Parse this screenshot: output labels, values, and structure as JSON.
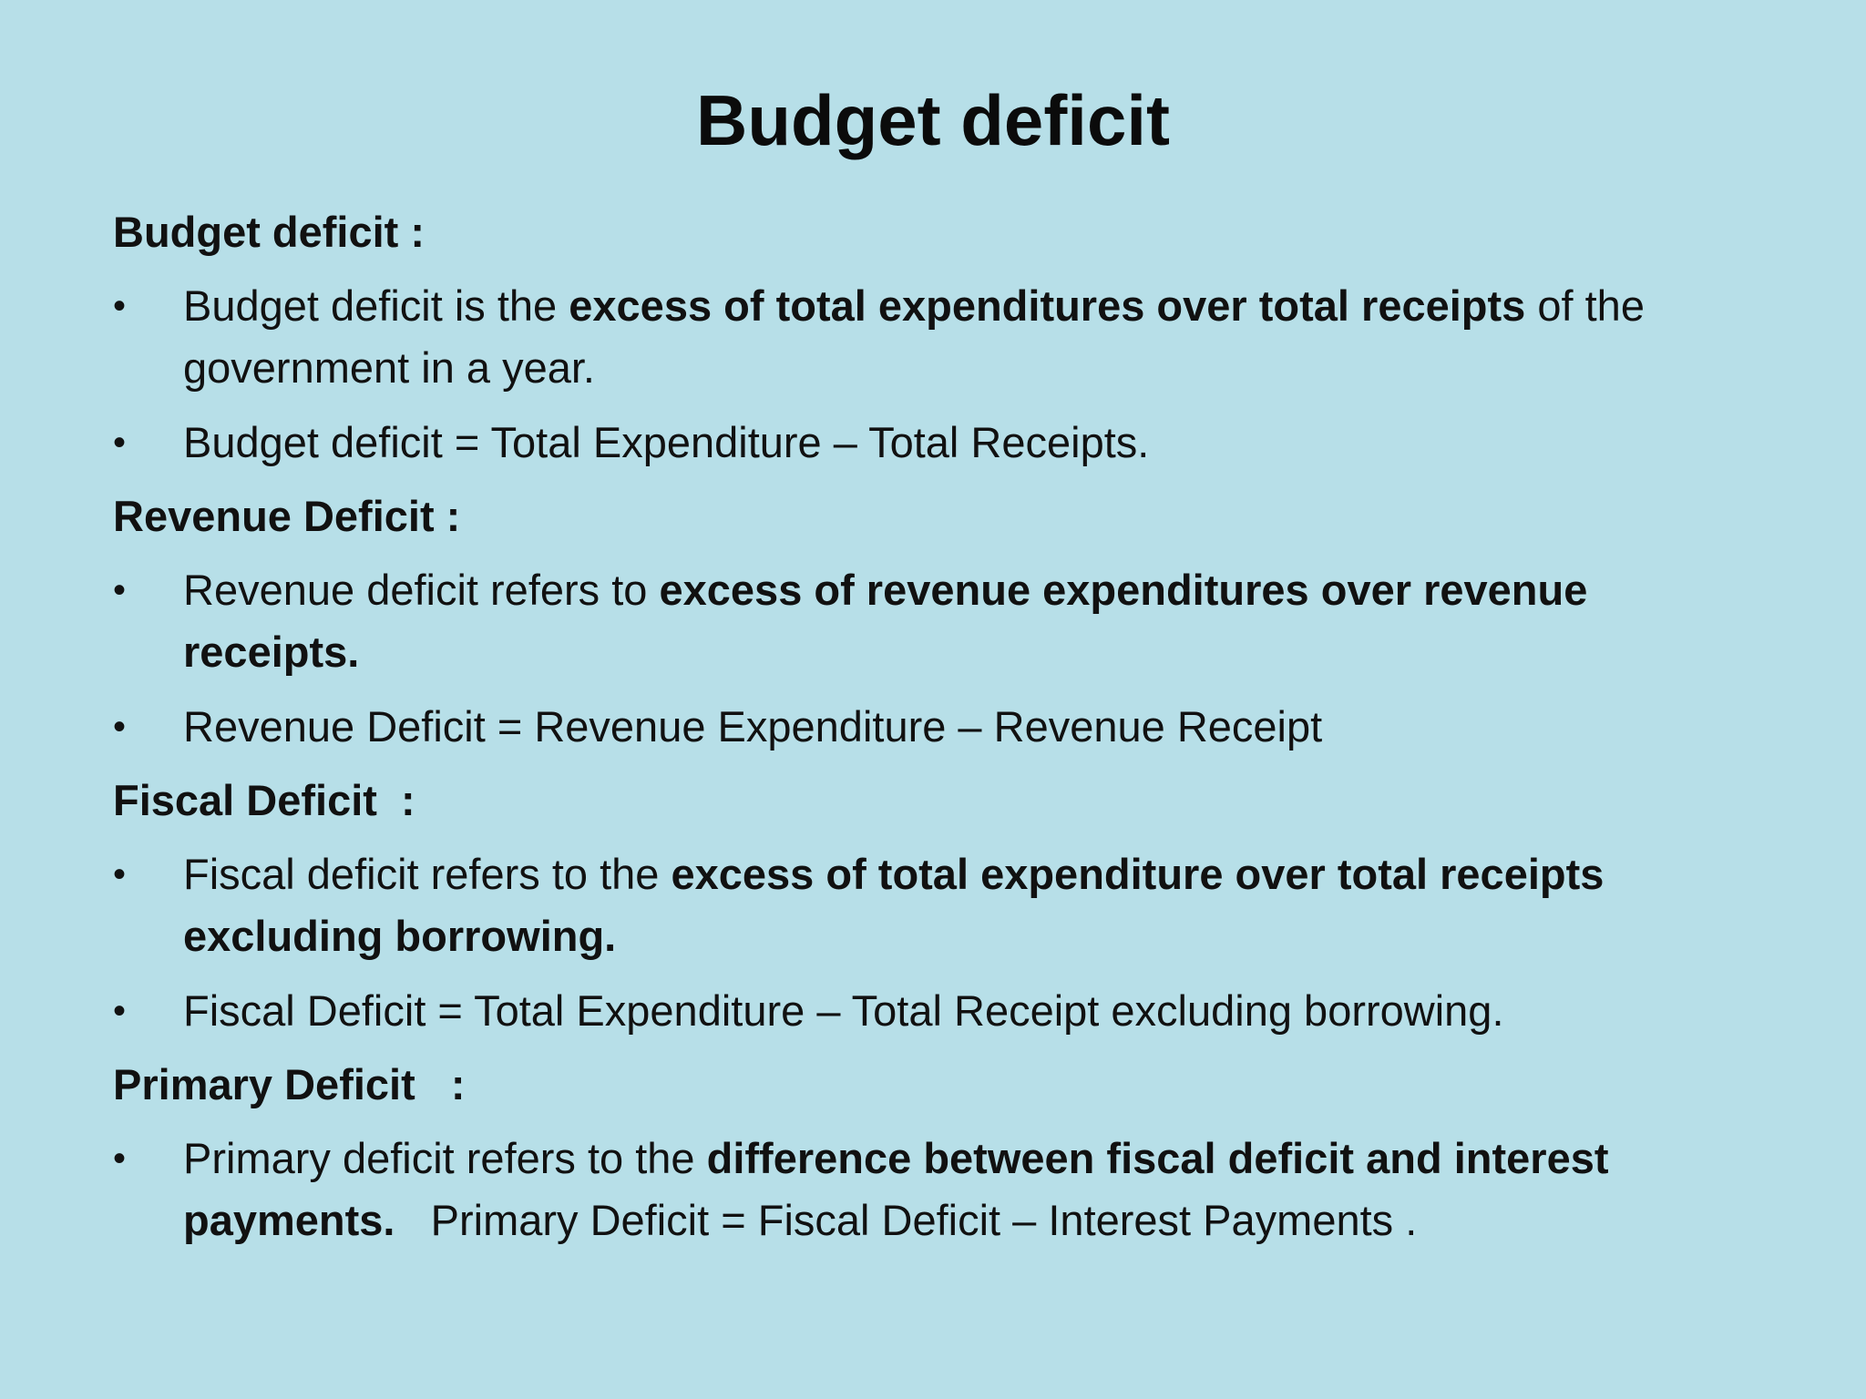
{
  "title": "Budget deficit",
  "bullet_symbol": "•",
  "sections": [
    {
      "heading": "Budget deficit :",
      "bullets": [
        {
          "pre": "Budget deficit is the ",
          "bold": "excess of total expenditures over total receipts",
          "post": " of the government in a year."
        },
        {
          "text": "Budget deficit = Total Expenditure – Total Receipts."
        }
      ]
    },
    {
      "heading": "Revenue Deficit :",
      "bullets": [
        {
          "pre": "Revenue deficit refers to ",
          "bold": "excess of revenue expenditures over revenue receipts."
        },
        {
          "text": "Revenue Deficit = Revenue Expenditure – Revenue Receipt"
        }
      ]
    },
    {
      "heading": "Fiscal Deficit  :",
      "bullets": [
        {
          "pre": "Fiscal deficit refers to the ",
          "bold": "excess of total expenditure over total receipts excluding borrowing."
        },
        {
          "text": "Fiscal Deficit = Total Expenditure – Total Receipt excluding borrowing."
        }
      ]
    },
    {
      "heading": "Primary Deficit   :",
      "bullets": [
        {
          "pre": "Primary deficit refers to the ",
          "bold": "difference between fiscal deficit and interest payments.",
          "post": "   Primary Deficit = Fiscal Deficit – Interest Payments ."
        }
      ]
    }
  ]
}
